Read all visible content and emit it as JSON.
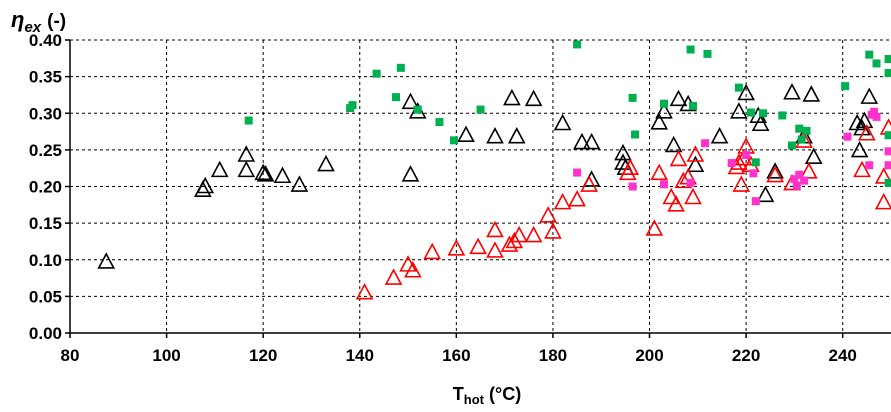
{
  "chart_data": {
    "type": "scatter",
    "title": "",
    "ylabel_symbol": "η",
    "ylabel_sub": "ex",
    "ylabel_unit": "(-)",
    "xlabel_main": "T",
    "xlabel_sub": "hot",
    "xlabel_unit": "(°C)",
    "xlim": [
      80,
      250
    ],
    "ylim": [
      0,
      0.4
    ],
    "xticks": [
      80,
      100,
      120,
      140,
      160,
      180,
      200,
      220,
      240
    ],
    "xtick_labels": [
      "80",
      "100",
      "120",
      "140",
      "160",
      "180",
      "200",
      "220",
      "240"
    ],
    "yticks": [
      0,
      0.05,
      0.1,
      0.15,
      0.2,
      0.25,
      0.3,
      0.35,
      0.4
    ],
    "ytick_labels": [
      "0.00",
      "0.05",
      "0.10",
      "0.15",
      "0.20",
      "0.25",
      "0.30",
      "0.35",
      "0.40"
    ],
    "grid": true,
    "grid_style": "dashed",
    "legend": "none",
    "series": [
      {
        "marker": "triangle-open",
        "color": "#000000",
        "points": [
          [
            87.5,
            0.097
          ],
          [
            107.5,
            0.195
          ],
          [
            108,
            0.2
          ],
          [
            111,
            0.222
          ],
          [
            116.5,
            0.243
          ],
          [
            116.5,
            0.222
          ],
          [
            120,
            0.218
          ],
          [
            120.5,
            0.216
          ],
          [
            124,
            0.214
          ],
          [
            127.5,
            0.202
          ],
          [
            133,
            0.23
          ],
          [
            150.5,
            0.315
          ],
          [
            150.5,
            0.216
          ],
          [
            152,
            0.302
          ],
          [
            162,
            0.27
          ],
          [
            168,
            0.268
          ],
          [
            171.5,
            0.32
          ],
          [
            172.5,
            0.268
          ],
          [
            176,
            0.319
          ],
          [
            182,
            0.286
          ],
          [
            186,
            0.26
          ],
          [
            188,
            0.209
          ],
          [
            188,
            0.26
          ],
          [
            194.5,
            0.245
          ],
          [
            194.5,
            0.232
          ],
          [
            195,
            0.225
          ],
          [
            202,
            0.287
          ],
          [
            203,
            0.302
          ],
          [
            205,
            0.256
          ],
          [
            206,
            0.319
          ],
          [
            208,
            0.312
          ],
          [
            209.5,
            0.229
          ],
          [
            214.5,
            0.268
          ],
          [
            218.5,
            0.302
          ],
          [
            220,
            0.327
          ],
          [
            222.5,
            0.296
          ],
          [
            223,
            0.285
          ],
          [
            224,
            0.188
          ],
          [
            226,
            0.22
          ],
          [
            229.5,
            0.328
          ],
          [
            232,
            0.268
          ],
          [
            233.5,
            0.325
          ],
          [
            234,
            0.24
          ],
          [
            243,
            0.286
          ],
          [
            243.5,
            0.249
          ],
          [
            244,
            0.279
          ],
          [
            244.5,
            0.289
          ],
          [
            245.5,
            0.322
          ]
        ]
      },
      {
        "marker": "triangle-open",
        "color": "#ff0000",
        "points": [
          [
            141,
            0.055
          ],
          [
            147,
            0.075
          ],
          [
            150,
            0.093
          ],
          [
            151,
            0.085
          ],
          [
            155,
            0.11
          ],
          [
            160,
            0.115
          ],
          [
            164.5,
            0.117
          ],
          [
            168,
            0.112
          ],
          [
            168,
            0.14
          ],
          [
            171,
            0.12
          ],
          [
            172,
            0.125
          ],
          [
            173,
            0.133
          ],
          [
            176,
            0.133
          ],
          [
            179,
            0.16
          ],
          [
            180,
            0.138
          ],
          [
            182,
            0.178
          ],
          [
            185,
            0.182
          ],
          [
            187.5,
            0.202
          ],
          [
            195.5,
            0.218
          ],
          [
            196,
            0.225
          ],
          [
            201,
            0.142
          ],
          [
            202,
            0.218
          ],
          [
            204.5,
            0.185
          ],
          [
            205.5,
            0.175
          ],
          [
            206,
            0.237
          ],
          [
            207,
            0.207
          ],
          [
            208,
            0.212
          ],
          [
            209,
            0.185
          ],
          [
            209.5,
            0.243
          ],
          [
            218,
            0.226
          ],
          [
            218.5,
            0.232
          ],
          [
            219,
            0.202
          ],
          [
            219.5,
            0.238
          ],
          [
            220,
            0.254
          ],
          [
            221,
            0.229
          ],
          [
            226,
            0.215
          ],
          [
            229.5,
            0.204
          ],
          [
            232,
            0.262
          ],
          [
            233,
            0.22
          ],
          [
            244,
            0.222
          ],
          [
            245,
            0.272
          ],
          [
            248.5,
            0.178
          ],
          [
            248.5,
            0.213
          ],
          [
            249.5,
            0.28
          ]
        ]
      },
      {
        "marker": "square",
        "color": "#00b050",
        "points": [
          [
            117,
            0.29
          ],
          [
            138,
            0.307
          ],
          [
            138.5,
            0.311
          ],
          [
            143.5,
            0.354
          ],
          [
            147.5,
            0.322
          ],
          [
            148.5,
            0.362
          ],
          [
            152,
            0.305
          ],
          [
            156.5,
            0.288
          ],
          [
            159.5,
            0.263
          ],
          [
            165,
            0.305
          ],
          [
            185,
            0.394
          ],
          [
            196.5,
            0.321
          ],
          [
            197,
            0.271
          ],
          [
            203,
            0.313
          ],
          [
            208.5,
            0.387
          ],
          [
            209,
            0.31
          ],
          [
            212,
            0.381
          ],
          [
            218.5,
            0.335
          ],
          [
            221,
            0.301
          ],
          [
            222,
            0.233
          ],
          [
            223.5,
            0.3
          ],
          [
            227.5,
            0.297
          ],
          [
            229.5,
            0.256
          ],
          [
            231,
            0.279
          ],
          [
            231.5,
            0.264
          ],
          [
            232.5,
            0.276
          ],
          [
            240.5,
            0.337
          ],
          [
            245.5,
            0.38
          ],
          [
            247,
            0.368
          ],
          [
            249.5,
            0.374
          ],
          [
            249.5,
            0.355
          ],
          [
            249.5,
            0.27
          ],
          [
            249.5,
            0.205
          ]
        ]
      },
      {
        "marker": "square",
        "color": "#ff33cc",
        "points": [
          [
            185,
            0.219
          ],
          [
            196.5,
            0.2
          ],
          [
            203,
            0.203
          ],
          [
            208.5,
            0.205
          ],
          [
            211.5,
            0.259
          ],
          [
            217,
            0.232
          ],
          [
            220,
            0.243
          ],
          [
            221.5,
            0.218
          ],
          [
            222,
            0.18
          ],
          [
            230,
            0.21
          ],
          [
            230.5,
            0.201
          ],
          [
            231,
            0.216
          ],
          [
            232,
            0.208
          ],
          [
            241,
            0.268
          ],
          [
            245.5,
            0.229
          ],
          [
            246,
            0.298
          ],
          [
            246.5,
            0.302
          ],
          [
            247,
            0.295
          ],
          [
            249.5,
            0.248
          ],
          [
            249.5,
            0.229
          ]
        ]
      }
    ]
  }
}
